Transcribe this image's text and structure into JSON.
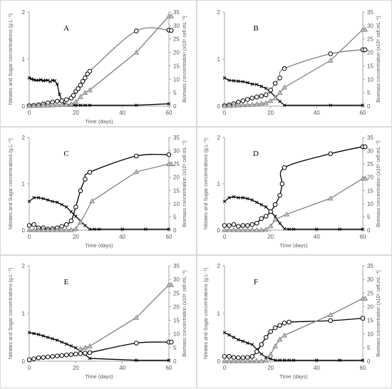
{
  "colors": {
    "black": "#000000",
    "grey": "#808080",
    "axis": "#a6a6a6",
    "text": "#595959"
  },
  "chart_data": [
    {
      "type": "line",
      "panel": "A",
      "xlabel": "Time (days)",
      "ylabel_left": "Nitrates and Sugar concentrations (g.L⁻¹)",
      "ylabel_right": "Biomass concentration (x10⁶ cell.mL⁻¹)",
      "xlim": [
        0,
        60
      ],
      "xticks": [
        0,
        20,
        40,
        60
      ],
      "ylim_left": [
        0,
        2
      ],
      "yticks_left": [
        0,
        1,
        2
      ],
      "ylim_right": [
        0,
        35
      ],
      "yticks_right": [
        0,
        5,
        10,
        15,
        20,
        25,
        30,
        35
      ],
      "series": [
        {
          "marker": "x",
          "color": "#000000",
          "axis": "left",
          "x": [
            0,
            1,
            2,
            3,
            4,
            5,
            6,
            7,
            8,
            9,
            10,
            11,
            12,
            13,
            14,
            15,
            16,
            17,
            18,
            19,
            20,
            22,
            24,
            26,
            46,
            60
          ],
          "y": [
            0.6,
            0.58,
            0.56,
            0.55,
            0.55,
            0.56,
            0.54,
            0.55,
            0.55,
            0.52,
            0.55,
            0.54,
            0.47,
            0.25,
            0.12,
            0.05,
            0.02,
            0.02,
            0.02,
            0.02,
            0.02,
            0.02,
            0.02,
            0.02,
            0.02,
            0.05
          ]
        },
        {
          "marker": "circle",
          "color": "#808080",
          "axis": "right",
          "smooth": true,
          "x": [
            0,
            2,
            4,
            6,
            8,
            10,
            12,
            14,
            16,
            18,
            19,
            20,
            21,
            22,
            23,
            24,
            25,
            26,
            46,
            60,
            61
          ],
          "y": [
            0.2,
            0.3,
            0.5,
            0.8,
            1.2,
            1.5,
            1.8,
            2.0,
            2.4,
            3.0,
            4.0,
            5.5,
            6.5,
            7.8,
            9.2,
            10.5,
            12.0,
            13.0,
            28.0,
            28.3,
            28.2
          ]
        },
        {
          "marker": "triangle",
          "color": "#808080",
          "axis": "right",
          "x": [
            0,
            2,
            4,
            6,
            8,
            10,
            12,
            14,
            16,
            18,
            20,
            22,
            24,
            26,
            46,
            60,
            61
          ],
          "y": [
            0.1,
            0.2,
            0.2,
            0.3,
            0.3,
            0.4,
            0.5,
            0.5,
            0.6,
            0.8,
            1.5,
            3.5,
            5.0,
            6.0,
            20.0,
            33.5,
            33.5
          ]
        }
      ]
    },
    {
      "type": "line",
      "panel": "B",
      "xlabel": "",
      "ylabel_left": "",
      "ylabel_right": "Biomass concentration (x10⁶ cell.mL⁻¹)",
      "xlim": [
        0,
        60
      ],
      "xticks": [
        0,
        20,
        40,
        60
      ],
      "ylim_left": [
        0,
        2
      ],
      "yticks_left": [
        0,
        1,
        2
      ],
      "ylim_right": [
        0,
        35
      ],
      "yticks_right": [
        0,
        5,
        10,
        15,
        20,
        25,
        30,
        35
      ],
      "series": [
        {
          "marker": "x",
          "color": "#000000",
          "axis": "left",
          "x": [
            0,
            2,
            4,
            6,
            8,
            10,
            12,
            14,
            16,
            18,
            20,
            22,
            24,
            26,
            46,
            60
          ],
          "y": [
            0.6,
            0.55,
            0.54,
            0.53,
            0.52,
            0.5,
            0.47,
            0.46,
            0.42,
            0.38,
            0.3,
            0.2,
            0.1,
            0.02,
            0.02,
            0.02
          ]
        },
        {
          "marker": "circle",
          "color": "#808080",
          "axis": "right",
          "smooth": true,
          "x": [
            0,
            2,
            4,
            6,
            8,
            10,
            12,
            14,
            16,
            18,
            20,
            22,
            24,
            26,
            46,
            60,
            61
          ],
          "y": [
            0.2,
            0.5,
            0.9,
            1.5,
            2.0,
            2.5,
            3.0,
            3.4,
            3.8,
            4.2,
            6.0,
            8.5,
            10.5,
            14.0,
            19.5,
            21.0,
            21.0
          ]
        },
        {
          "marker": "triangle",
          "color": "#808080",
          "axis": "right",
          "x": [
            0,
            2,
            4,
            6,
            8,
            10,
            12,
            14,
            16,
            18,
            20,
            22,
            24,
            26,
            46,
            60,
            61
          ],
          "y": [
            0.1,
            0.2,
            0.3,
            0.4,
            0.5,
            0.5,
            0.6,
            0.8,
            1.0,
            1.2,
            2.0,
            3.0,
            5.0,
            7.0,
            17.0,
            28.5,
            28.5
          ]
        }
      ]
    },
    {
      "type": "line",
      "panel": "C",
      "xlabel": "Time (days)",
      "ylabel_left": "Nitrates and Sugar concentrations (g.L⁻¹)",
      "ylabel_right": "Biomass concentration (x10⁶ cell.mL⁻¹)",
      "xlim": [
        0,
        60
      ],
      "xticks": [
        0,
        20,
        40,
        60
      ],
      "ylim_left": [
        0,
        2
      ],
      "yticks_left": [
        0,
        1,
        2
      ],
      "ylim_right": [
        0,
        35
      ],
      "yticks_right": [
        0,
        5,
        10,
        15,
        20,
        25,
        30,
        35
      ],
      "series": [
        {
          "marker": "x",
          "color": "#000000",
          "axis": "left",
          "x": [
            0,
            2,
            4,
            6,
            8,
            10,
            12,
            14,
            16,
            18,
            20,
            22,
            24,
            26,
            28,
            30,
            40,
            50,
            60
          ],
          "y": [
            0.62,
            0.7,
            0.7,
            0.68,
            0.65,
            0.62,
            0.6,
            0.55,
            0.5,
            0.4,
            0.3,
            0.2,
            0.1,
            0.02,
            0.02,
            0.02,
            0.02,
            0.02,
            0.02
          ]
        },
        {
          "marker": "circle",
          "color": "#000000",
          "axis": "left",
          "smooth": true,
          "x": [
            0,
            2,
            4,
            6,
            8,
            10,
            12,
            14,
            16,
            18,
            20,
            22,
            24,
            26,
            46,
            60
          ],
          "y": [
            0.1,
            0.12,
            0.05,
            0.05,
            0.02,
            0.03,
            0.05,
            0.08,
            0.12,
            0.2,
            0.5,
            0.85,
            1.1,
            1.25,
            1.6,
            1.63
          ]
        },
        {
          "marker": "triangle",
          "color": "#808080",
          "axis": "right",
          "x": [
            0,
            2,
            4,
            6,
            8,
            10,
            12,
            14,
            16,
            18,
            20,
            22,
            27,
            46,
            60,
            61
          ],
          "y": [
            0.1,
            0.1,
            0.1,
            0.1,
            0.1,
            0.1,
            0.1,
            0.1,
            0.1,
            0.1,
            0.5,
            3.0,
            11.0,
            22.0,
            25.0,
            25.0
          ]
        }
      ]
    },
    {
      "type": "line",
      "panel": "D",
      "xlabel": "Time (days)",
      "ylabel_left": "Nitrates and Sugar concentrations (g.L⁻¹)",
      "ylabel_right": "Biomass concentration (x10⁶ cell.mL⁻¹)",
      "xlim": [
        0,
        60
      ],
      "xticks": [
        0,
        20,
        40,
        60
      ],
      "ylim_left": [
        0,
        2
      ],
      "yticks_left": [
        0,
        1,
        2
      ],
      "ylim_right": [
        0,
        35
      ],
      "yticks_right": [
        0,
        5,
        10,
        15,
        20,
        25,
        30,
        35
      ],
      "series": [
        {
          "marker": "x",
          "color": "#000000",
          "axis": "left",
          "x": [
            0,
            2,
            4,
            6,
            8,
            10,
            12,
            14,
            16,
            18,
            20,
            22,
            24,
            26,
            28,
            30,
            40,
            50,
            60
          ],
          "y": [
            0.62,
            0.7,
            0.72,
            0.7,
            0.7,
            0.68,
            0.65,
            0.6,
            0.55,
            0.5,
            0.4,
            0.3,
            0.15,
            0.03,
            0.02,
            0.02,
            0.02,
            0.02,
            0.02
          ]
        },
        {
          "marker": "circle",
          "color": "#000000",
          "axis": "left",
          "smooth": true,
          "x": [
            0,
            2,
            4,
            6,
            8,
            10,
            12,
            14,
            16,
            18,
            20,
            22,
            24,
            25,
            26,
            46,
            60,
            61
          ],
          "y": [
            0.1,
            0.1,
            0.12,
            0.08,
            0.1,
            0.1,
            0.12,
            0.15,
            0.25,
            0.3,
            0.4,
            0.55,
            0.75,
            1.0,
            1.35,
            1.65,
            1.8,
            1.8
          ]
        },
        {
          "marker": "triangle",
          "color": "#808080",
          "axis": "right",
          "x": [
            0,
            2,
            4,
            6,
            8,
            10,
            12,
            14,
            16,
            18,
            20,
            22,
            27,
            46,
            60,
            61
          ],
          "y": [
            0.1,
            0.1,
            0.1,
            0.1,
            0.1,
            0.1,
            0.1,
            0.1,
            0.1,
            0.3,
            1.5,
            4.0,
            6.0,
            12.0,
            19.5,
            19.5
          ]
        }
      ]
    },
    {
      "type": "line",
      "panel": "E",
      "xlabel": "Time (days)",
      "ylabel_left": "Nitrates and Sugar concentrations (g.L⁻¹)",
      "ylabel_right": "Biomass concentration (x10⁶ cell.mL⁻¹)",
      "xlim": [
        0,
        60
      ],
      "xticks": [
        0,
        20,
        40,
        60
      ],
      "ylim_left": [
        0,
        2
      ],
      "yticks_left": [
        0,
        1,
        2
      ],
      "ylim_right": [
        0,
        35
      ],
      "yticks_right": [
        0,
        5,
        10,
        15,
        20,
        25,
        30,
        35
      ],
      "series": [
        {
          "marker": "x",
          "color": "#000000",
          "axis": "left",
          "x": [
            0,
            2,
            4,
            6,
            8,
            10,
            12,
            14,
            16,
            18,
            20,
            22,
            24,
            26,
            46,
            60
          ],
          "y": [
            0.6,
            0.58,
            0.56,
            0.53,
            0.5,
            0.47,
            0.44,
            0.4,
            0.36,
            0.32,
            0.28,
            0.2,
            0.14,
            0.06,
            0.02,
            0.02
          ]
        },
        {
          "marker": "circle",
          "color": "#000000",
          "axis": "left",
          "smooth": true,
          "x": [
            0,
            2,
            4,
            6,
            8,
            10,
            12,
            14,
            16,
            18,
            20,
            22,
            24,
            26,
            46,
            60,
            61
          ],
          "y": [
            0.03,
            0.05,
            0.07,
            0.08,
            0.09,
            0.1,
            0.11,
            0.12,
            0.13,
            0.14,
            0.15,
            0.16,
            0.17,
            0.18,
            0.38,
            0.4,
            0.4
          ]
        },
        {
          "marker": "triangle",
          "color": "#808080",
          "axis": "right",
          "x": [
            22,
            24,
            26,
            46,
            60,
            61
          ],
          "y": [
            4.5,
            5.0,
            5.5,
            16.0,
            28.0,
            28.0
          ]
        }
      ]
    },
    {
      "type": "line",
      "panel": "F",
      "xlabel": "Time (days)",
      "ylabel_left": "Nitrates and Sugar concentrations (g.L⁻¹)",
      "ylabel_right": "Biomass concentration (x10⁶ cell.mL⁻¹)",
      "xlim": [
        0,
        60
      ],
      "xticks": [
        0,
        20,
        40,
        60
      ],
      "ylim_left": [
        0,
        2
      ],
      "yticks_left": [
        0,
        1,
        2
      ],
      "ylim_right": [
        0,
        35
      ],
      "yticks_right": [
        0,
        5,
        10,
        15,
        20,
        25,
        30,
        35
      ],
      "series": [
        {
          "marker": "x",
          "color": "#000000",
          "axis": "left",
          "x": [
            0,
            2,
            4,
            6,
            8,
            10,
            12,
            14,
            16,
            18,
            20,
            22,
            24,
            26,
            28,
            30,
            40,
            50,
            60
          ],
          "y": [
            0.6,
            0.55,
            0.5,
            0.45,
            0.42,
            0.38,
            0.35,
            0.25,
            0.15,
            0.08,
            0.05,
            0.02,
            0.02,
            0.02,
            0.02,
            0.02,
            0.02,
            0.02,
            0.02
          ]
        },
        {
          "marker": "circle",
          "color": "#000000",
          "axis": "left",
          "smooth": true,
          "x": [
            0,
            2,
            4,
            6,
            8,
            10,
            12,
            14,
            16,
            18,
            20,
            22,
            24,
            26,
            28,
            46,
            60
          ],
          "y": [
            0.1,
            0.1,
            0.08,
            0.07,
            0.07,
            0.08,
            0.1,
            0.2,
            0.35,
            0.5,
            0.62,
            0.7,
            0.75,
            0.8,
            0.82,
            0.85,
            0.9
          ]
        },
        {
          "marker": "triangle",
          "color": "#808080",
          "axis": "right",
          "x": [
            0,
            2,
            4,
            6,
            8,
            10,
            12,
            14,
            16,
            18,
            20,
            22,
            24,
            26,
            46,
            60,
            61
          ],
          "y": [
            0.1,
            0.1,
            0.1,
            0.1,
            0.1,
            0.1,
            0.1,
            0.1,
            0.1,
            0.3,
            2.5,
            5.5,
            8.0,
            9.5,
            17.0,
            23.0,
            23.0
          ]
        }
      ]
    }
  ]
}
